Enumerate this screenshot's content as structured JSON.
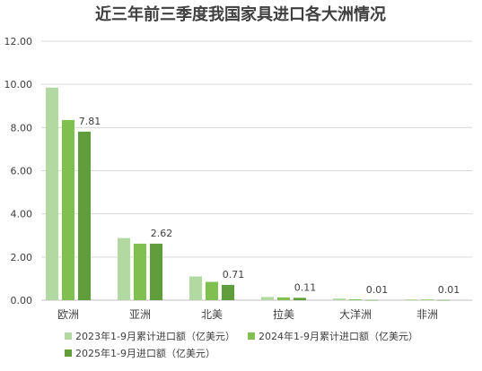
{
  "chart_data": {
    "type": "bar",
    "title": "近三年前三季度我国家具进口各大洲情况",
    "categories": [
      "欧洲",
      "亚洲",
      "北美",
      "拉美",
      "大洋洲",
      "非洲"
    ],
    "series": [
      {
        "name": "2023年1-9月累计进口额（亿美元）",
        "values": [
          9.85,
          2.88,
          1.1,
          0.15,
          0.08,
          0.04
        ],
        "color": "#b3d9a3"
      },
      {
        "name": "2024年1-9月累计进口额（亿美元）",
        "values": [
          8.35,
          2.62,
          0.85,
          0.13,
          0.04,
          0.03
        ],
        "color": "#80c050"
      },
      {
        "name": "2025年1-9月进口额（亿美元）",
        "values": [
          7.81,
          2.62,
          0.71,
          0.11,
          0.01,
          0.01
        ],
        "color": "#5f9e3a"
      }
    ],
    "data_labels": {
      "series_index": 2,
      "texts": [
        "7.81",
        "2.62",
        "0.71",
        "0.11",
        "0.01",
        "0.01"
      ]
    },
    "y_ticks": [
      "0.00",
      "2.00",
      "4.00",
      "6.00",
      "8.00",
      "10.00",
      "12.00"
    ],
    "ylim": [
      0,
      12
    ],
    "grid": true,
    "legend_position": "bottom"
  }
}
